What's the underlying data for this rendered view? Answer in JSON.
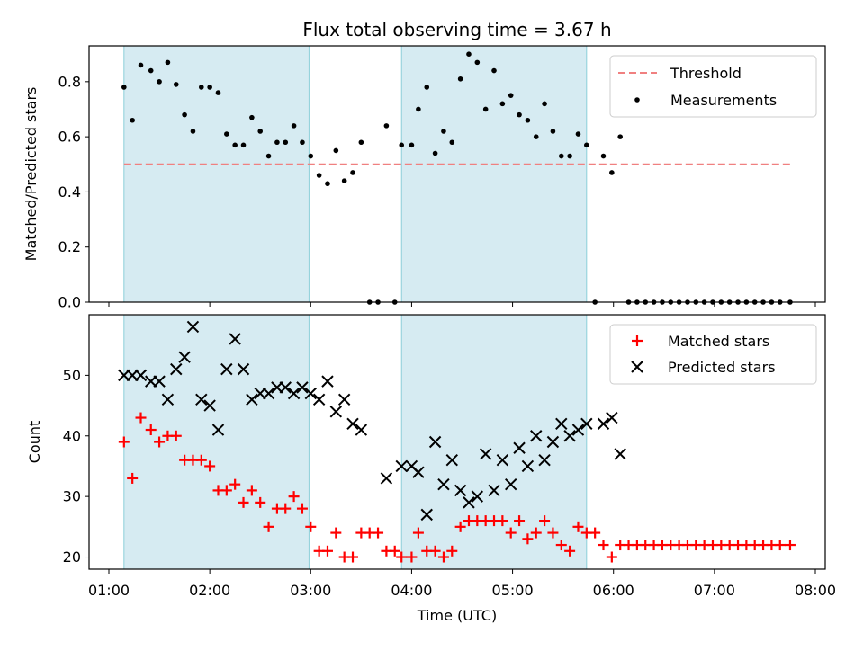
{
  "figure": {
    "title": "Flux total observing time = 3.67 h"
  },
  "chart_data": [
    {
      "type": "scatter",
      "panel": "top",
      "title": "Flux total observing time = 3.67 h",
      "xlabel": "",
      "ylabel": "Matched/Predicted stars",
      "xlim": [
        "01:00",
        "08:00"
      ],
      "ylim": [
        0,
        0.93
      ],
      "yticks": [
        "0.0",
        "0.2",
        "0.4",
        "0.6",
        "0.8"
      ],
      "shaded_intervals": [
        [
          "01:09",
          "02:59"
        ],
        [
          "03:54",
          "05:44"
        ]
      ],
      "grid": false,
      "legend_position": "top-right",
      "threshold": {
        "name": "Threshold",
        "value": 0.5,
        "x_range": [
          "01:09",
          "07:45"
        ],
        "color": "#f08080"
      },
      "series": [
        {
          "name": "Measurements",
          "marker": "dot",
          "color": "#000000",
          "points": [
            [
              "01:09",
              0.78
            ],
            [
              "01:14",
              0.66
            ],
            [
              "01:19",
              0.86
            ],
            [
              "01:25",
              0.84
            ],
            [
              "01:30",
              0.8
            ],
            [
              "01:35",
              0.87
            ],
            [
              "01:40",
              0.79
            ],
            [
              "01:45",
              0.68
            ],
            [
              "01:50",
              0.62
            ],
            [
              "01:55",
              0.78
            ],
            [
              "02:00",
              0.78
            ],
            [
              "02:05",
              0.76
            ],
            [
              "02:10",
              0.61
            ],
            [
              "02:15",
              0.57
            ],
            [
              "02:20",
              0.57
            ],
            [
              "02:25",
              0.67
            ],
            [
              "02:30",
              0.62
            ],
            [
              "02:35",
              0.53
            ],
            [
              "02:40",
              0.58
            ],
            [
              "02:45",
              0.58
            ],
            [
              "02:50",
              0.64
            ],
            [
              "02:55",
              0.58
            ],
            [
              "03:00",
              0.53
            ],
            [
              "03:05",
              0.46
            ],
            [
              "03:10",
              0.43
            ],
            [
              "03:15",
              0.55
            ],
            [
              "03:20",
              0.44
            ],
            [
              "03:25",
              0.47
            ],
            [
              "03:30",
              0.58
            ],
            [
              "03:35",
              0.0
            ],
            [
              "03:40",
              0.0
            ],
            [
              "03:45",
              0.64
            ],
            [
              "03:50",
              0.0
            ],
            [
              "03:54",
              0.57
            ],
            [
              "04:00",
              0.57
            ],
            [
              "04:04",
              0.7
            ],
            [
              "04:09",
              0.78
            ],
            [
              "04:14",
              0.54
            ],
            [
              "04:19",
              0.62
            ],
            [
              "04:24",
              0.58
            ],
            [
              "04:29",
              0.81
            ],
            [
              "04:34",
              0.9
            ],
            [
              "04:39",
              0.87
            ],
            [
              "04:44",
              0.7
            ],
            [
              "04:49",
              0.84
            ],
            [
              "04:54",
              0.72
            ],
            [
              "04:59",
              0.75
            ],
            [
              "05:04",
              0.68
            ],
            [
              "05:09",
              0.66
            ],
            [
              "05:14",
              0.6
            ],
            [
              "05:19",
              0.72
            ],
            [
              "05:24",
              0.62
            ],
            [
              "05:29",
              0.53
            ],
            [
              "05:34",
              0.53
            ],
            [
              "05:39",
              0.61
            ],
            [
              "05:44",
              0.57
            ],
            [
              "05:49",
              0.0
            ],
            [
              "05:54",
              0.53
            ],
            [
              "05:59",
              0.47
            ],
            [
              "06:04",
              0.6
            ],
            [
              "06:09",
              0.0
            ],
            [
              "06:14",
              0.0
            ],
            [
              "06:19",
              0.0
            ],
            [
              "06:24",
              0.0
            ],
            [
              "06:29",
              0.0
            ],
            [
              "06:34",
              0.0
            ],
            [
              "06:39",
              0.0
            ],
            [
              "06:44",
              0.0
            ],
            [
              "06:49",
              0.0
            ],
            [
              "06:54",
              0.0
            ],
            [
              "06:59",
              0.0
            ],
            [
              "07:04",
              0.0
            ],
            [
              "07:09",
              0.0
            ],
            [
              "07:14",
              0.0
            ],
            [
              "07:19",
              0.0
            ],
            [
              "07:24",
              0.0
            ],
            [
              "07:29",
              0.0
            ],
            [
              "07:34",
              0.0
            ],
            [
              "07:39",
              0.0
            ],
            [
              "07:45",
              0.0
            ]
          ]
        }
      ]
    },
    {
      "type": "scatter",
      "panel": "bottom",
      "xlabel": "Time (UTC)",
      "ylabel": "Count",
      "xlim": [
        "01:00",
        "08:00"
      ],
      "ylim": [
        18,
        60
      ],
      "yticks": [
        "20",
        "30",
        "40",
        "50"
      ],
      "xticks": [
        "01:00",
        "02:00",
        "03:00",
        "04:00",
        "05:00",
        "06:00",
        "07:00",
        "08:00"
      ],
      "shaded_intervals": [
        [
          "01:09",
          "02:59"
        ],
        [
          "03:54",
          "05:44"
        ]
      ],
      "grid": false,
      "legend_position": "top-right",
      "series": [
        {
          "name": "Matched stars",
          "marker": "plus",
          "color": "#ff0000",
          "points": [
            [
              "01:09",
              39
            ],
            [
              "01:14",
              33
            ],
            [
              "01:19",
              43
            ],
            [
              "01:25",
              41
            ],
            [
              "01:30",
              39
            ],
            [
              "01:35",
              40
            ],
            [
              "01:40",
              40
            ],
            [
              "01:45",
              36
            ],
            [
              "01:50",
              36
            ],
            [
              "01:55",
              36
            ],
            [
              "02:00",
              35
            ],
            [
              "02:05",
              31
            ],
            [
              "02:10",
              31
            ],
            [
              "02:15",
              32
            ],
            [
              "02:20",
              29
            ],
            [
              "02:25",
              31
            ],
            [
              "02:30",
              29
            ],
            [
              "02:35",
              25
            ],
            [
              "02:40",
              28
            ],
            [
              "02:45",
              28
            ],
            [
              "02:50",
              30
            ],
            [
              "02:55",
              28
            ],
            [
              "03:00",
              25
            ],
            [
              "03:05",
              21
            ],
            [
              "03:10",
              21
            ],
            [
              "03:15",
              24
            ],
            [
              "03:20",
              20
            ],
            [
              "03:25",
              20
            ],
            [
              "03:30",
              24
            ],
            [
              "03:35",
              24
            ],
            [
              "03:40",
              24
            ],
            [
              "03:45",
              21
            ],
            [
              "03:50",
              21
            ],
            [
              "03:54",
              20
            ],
            [
              "04:00",
              20
            ],
            [
              "04:04",
              24
            ],
            [
              "04:09",
              21
            ],
            [
              "04:14",
              21
            ],
            [
              "04:19",
              20
            ],
            [
              "04:24",
              21
            ],
            [
              "04:29",
              25
            ],
            [
              "04:34",
              26
            ],
            [
              "04:39",
              26
            ],
            [
              "04:44",
              26
            ],
            [
              "04:49",
              26
            ],
            [
              "04:54",
              26
            ],
            [
              "04:59",
              24
            ],
            [
              "05:04",
              26
            ],
            [
              "05:09",
              23
            ],
            [
              "05:14",
              24
            ],
            [
              "05:19",
              26
            ],
            [
              "05:24",
              24
            ],
            [
              "05:29",
              22
            ],
            [
              "05:34",
              21
            ],
            [
              "05:39",
              25
            ],
            [
              "05:44",
              24
            ],
            [
              "05:49",
              24
            ],
            [
              "05:54",
              22
            ],
            [
              "05:59",
              20
            ],
            [
              "06:04",
              22
            ],
            [
              "06:09",
              22
            ],
            [
              "06:14",
              22
            ],
            [
              "06:19",
              22
            ],
            [
              "06:24",
              22
            ],
            [
              "06:29",
              22
            ],
            [
              "06:34",
              22
            ],
            [
              "06:39",
              22
            ],
            [
              "06:44",
              22
            ],
            [
              "06:49",
              22
            ],
            [
              "06:54",
              22
            ],
            [
              "06:59",
              22
            ],
            [
              "07:04",
              22
            ],
            [
              "07:09",
              22
            ],
            [
              "07:14",
              22
            ],
            [
              "07:19",
              22
            ],
            [
              "07:24",
              22
            ],
            [
              "07:29",
              22
            ],
            [
              "07:34",
              22
            ],
            [
              "07:39",
              22
            ],
            [
              "07:45",
              22
            ]
          ]
        },
        {
          "name": "Predicted stars",
          "marker": "x",
          "color": "#000000",
          "points": [
            [
              "01:09",
              50
            ],
            [
              "01:14",
              50
            ],
            [
              "01:19",
              50
            ],
            [
              "01:25",
              49
            ],
            [
              "01:30",
              49
            ],
            [
              "01:35",
              46
            ],
            [
              "01:40",
              51
            ],
            [
              "01:45",
              53
            ],
            [
              "01:50",
              58
            ],
            [
              "01:55",
              46
            ],
            [
              "02:00",
              45
            ],
            [
              "02:05",
              41
            ],
            [
              "02:10",
              51
            ],
            [
              "02:15",
              56
            ],
            [
              "02:20",
              51
            ],
            [
              "02:25",
              46
            ],
            [
              "02:30",
              47
            ],
            [
              "02:35",
              47
            ],
            [
              "02:40",
              48
            ],
            [
              "02:45",
              48
            ],
            [
              "02:50",
              47
            ],
            [
              "02:55",
              48
            ],
            [
              "03:00",
              47
            ],
            [
              "03:05",
              46
            ],
            [
              "03:10",
              49
            ],
            [
              "03:15",
              44
            ],
            [
              "03:20",
              46
            ],
            [
              "03:25",
              42
            ],
            [
              "03:30",
              41
            ],
            [
              "03:45",
              33
            ],
            [
              "03:54",
              35
            ],
            [
              "04:00",
              35
            ],
            [
              "04:04",
              34
            ],
            [
              "04:09",
              27
            ],
            [
              "04:14",
              39
            ],
            [
              "04:19",
              32
            ],
            [
              "04:24",
              36
            ],
            [
              "04:29",
              31
            ],
            [
              "04:34",
              29
            ],
            [
              "04:39",
              30
            ],
            [
              "04:44",
              37
            ],
            [
              "04:49",
              31
            ],
            [
              "04:54",
              36
            ],
            [
              "04:59",
              32
            ],
            [
              "05:04",
              38
            ],
            [
              "05:09",
              35
            ],
            [
              "05:14",
              40
            ],
            [
              "05:19",
              36
            ],
            [
              "05:24",
              39
            ],
            [
              "05:29",
              42
            ],
            [
              "05:34",
              40
            ],
            [
              "05:39",
              41
            ],
            [
              "05:44",
              42
            ],
            [
              "05:54",
              42
            ],
            [
              "05:59",
              43
            ],
            [
              "06:04",
              37
            ]
          ]
        }
      ]
    }
  ]
}
